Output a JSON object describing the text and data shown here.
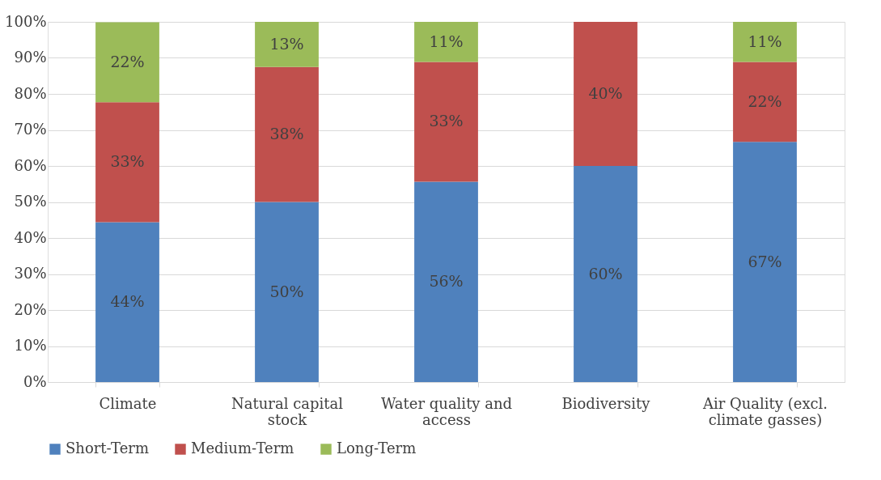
{
  "chart_data": {
    "type": "bar",
    "stacked": true,
    "categories": [
      "Climate",
      "Natural capital stock",
      "Water quality and access",
      "Biodiversity",
      "Air Quality (excl. climate gasses)"
    ],
    "series": [
      {
        "name": "Short-Term",
        "color": "#4f81bd",
        "values": [
          44.4,
          50,
          55.6,
          60,
          66.7
        ],
        "value_labels": [
          "44%",
          "50%",
          "56%",
          "60%",
          "67%"
        ]
      },
      {
        "name": "Medium-Term",
        "color": "#c0504d",
        "values": [
          33.3,
          37.5,
          33.3,
          40,
          22.2
        ],
        "value_labels": [
          "33%",
          "38%",
          "33%",
          "40%",
          "22%"
        ]
      },
      {
        "name": "Long-Term",
        "color": "#9bbb59",
        "values": [
          22.2,
          12.5,
          11.1,
          0,
          11.1
        ],
        "value_labels": [
          "22%",
          "13%",
          "11%",
          null,
          "11%"
        ]
      }
    ],
    "ylim": [
      0,
      100
    ],
    "yticks": [
      {
        "value": 0,
        "label": "0%"
      },
      {
        "value": 10,
        "label": "10%"
      },
      {
        "value": 20,
        "label": "20%"
      },
      {
        "value": 30,
        "label": "30%"
      },
      {
        "value": 40,
        "label": "40%"
      },
      {
        "value": 50,
        "label": "50%"
      },
      {
        "value": 60,
        "label": "60%"
      },
      {
        "value": 70,
        "label": "70%"
      },
      {
        "value": 80,
        "label": "80%"
      },
      {
        "value": 90,
        "label": "90%"
      },
      {
        "value": 100,
        "label": "100%"
      }
    ],
    "grid": "y",
    "legend": "bottom"
  }
}
